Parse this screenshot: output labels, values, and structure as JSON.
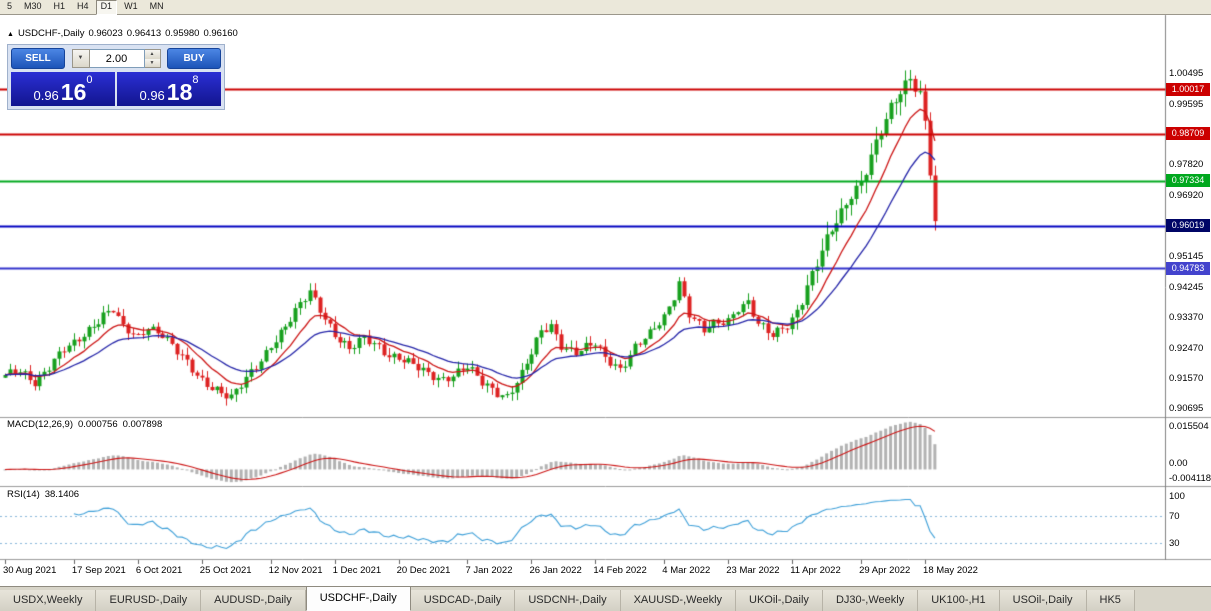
{
  "toolbar": {
    "timeframes": [
      "5",
      "M30",
      "H1",
      "H4",
      "D1",
      "W1",
      "MN"
    ],
    "active_timeframe": "D1"
  },
  "chart_header": {
    "title": "USDCHF-,Daily",
    "open": "0.96023",
    "high": "0.96413",
    "low": "0.95980",
    "close": "0.96160"
  },
  "one_click_panel": {
    "collapse_icon": "▲",
    "sell_label": "SELL",
    "buy_label": "BUY",
    "volume": "2.00",
    "bid": {
      "prefix": "0.96",
      "big": "16",
      "sup": "0"
    },
    "ask": {
      "prefix": "0.96",
      "big": "18",
      "sup": "8"
    }
  },
  "chart_data": {
    "type": "candlestick",
    "symbol": "USDCHF-",
    "timeframe": "Daily",
    "candle_count": 190,
    "price_range": [
      0.9047,
      1.0215
    ],
    "visible_ohlc": {
      "open": 0.96023,
      "high": 0.96413,
      "low": 0.9598,
      "close": 0.9616
    },
    "colors": {
      "up": "#17a01e",
      "down": "#dd2222",
      "ma_fast": "#cc1515",
      "ma_slow": "#2424a8"
    },
    "price_axis_labels": [
      "1.00495",
      "0.99595",
      "0.97820",
      "0.96920",
      "0.95145",
      "0.94245",
      "0.93370",
      "0.92470",
      "0.91570",
      "0.90695"
    ],
    "hlines": [
      {
        "price": 1.00017,
        "label": "1.00017",
        "line_color": "#cc0000",
        "badge_color": "#cc0000"
      },
      {
        "price": 0.98709,
        "label": "0.98709",
        "line_color": "#cc0000",
        "badge_color": "#cc0000"
      },
      {
        "price": 0.97334,
        "label": "0.97334",
        "line_color": "#00a81e",
        "badge_color": "#00a81e"
      },
      {
        "price": 0.96019,
        "label": "0.96019",
        "line_color": "#0000c0",
        "badge_color": "#000566"
      },
      {
        "price": 0.94783,
        "label": "0.94783",
        "line_color": "#3333cc",
        "badge_color": "#4343cd"
      }
    ],
    "date_ticks": [
      {
        "label": "30 Aug 2021",
        "index": 0
      },
      {
        "label": "17 Sep 2021",
        "index": 14
      },
      {
        "label": "6 Oct 2021",
        "index": 27
      },
      {
        "label": "25 Oct 2021",
        "index": 40
      },
      {
        "label": "12 Nov 2021",
        "index": 54
      },
      {
        "label": "1 Dec 2021",
        "index": 67
      },
      {
        "label": "20 Dec 2021",
        "index": 80
      },
      {
        "label": "7 Jan 2022",
        "index": 94
      },
      {
        "label": "26 Jan 2022",
        "index": 107
      },
      {
        "label": "14 Feb 2022",
        "index": 120
      },
      {
        "label": "4 Mar 2022",
        "index": 134
      },
      {
        "label": "23 Mar 2022",
        "index": 147
      },
      {
        "label": "11 Apr 2022",
        "index": 160
      },
      {
        "label": "29 Apr 2022",
        "index": 174
      },
      {
        "label": "18 May 2022",
        "index": 187
      }
    ],
    "close_anchors": [
      [
        0,
        0.916
      ],
      [
        3,
        0.9178
      ],
      [
        6,
        0.915
      ],
      [
        9,
        0.9192
      ],
      [
        12,
        0.9238
      ],
      [
        14,
        0.9255
      ],
      [
        17,
        0.9302
      ],
      [
        20,
        0.9345
      ],
      [
        22,
        0.9358
      ],
      [
        24,
        0.93
      ],
      [
        27,
        0.9275
      ],
      [
        29,
        0.9312
      ],
      [
        32,
        0.9288
      ],
      [
        35,
        0.9232
      ],
      [
        38,
        0.918
      ],
      [
        40,
        0.9152
      ],
      [
        43,
        0.9128
      ],
      [
        46,
        0.9098
      ],
      [
        49,
        0.9152
      ],
      [
        52,
        0.9212
      ],
      [
        54,
        0.9258
      ],
      [
        57,
        0.9308
      ],
      [
        60,
        0.9368
      ],
      [
        62,
        0.9408
      ],
      [
        64,
        0.9362
      ],
      [
        67,
        0.9288
      ],
      [
        70,
        0.9238
      ],
      [
        73,
        0.9272
      ],
      [
        76,
        0.9252
      ],
      [
        78,
        0.9228
      ],
      [
        80,
        0.9218
      ],
      [
        83,
        0.9192
      ],
      [
        86,
        0.9168
      ],
      [
        89,
        0.9158
      ],
      [
        94,
        0.9188
      ],
      [
        97,
        0.9142
      ],
      [
        100,
        0.9118
      ],
      [
        102,
        0.9108
      ],
      [
        105,
        0.9168
      ],
      [
        107,
        0.9228
      ],
      [
        109,
        0.9292
      ],
      [
        111,
        0.9312
      ],
      [
        113,
        0.9258
      ],
      [
        116,
        0.9232
      ],
      [
        120,
        0.9255
      ],
      [
        122,
        0.9218
      ],
      [
        125,
        0.9188
      ],
      [
        128,
        0.9248
      ],
      [
        131,
        0.9282
      ],
      [
        134,
        0.9335
      ],
      [
        136,
        0.9402
      ],
      [
        137,
        0.9442
      ],
      [
        139,
        0.9348
      ],
      [
        142,
        0.9292
      ],
      [
        144,
        0.9312
      ],
      [
        147,
        0.9328
      ],
      [
        149,
        0.9368
      ],
      [
        151,
        0.938
      ],
      [
        153,
        0.9312
      ],
      [
        156,
        0.9278
      ],
      [
        158,
        0.9306
      ],
      [
        160,
        0.9332
      ],
      [
        162,
        0.9392
      ],
      [
        164,
        0.9458
      ],
      [
        166,
        0.9522
      ],
      [
        168,
        0.9588
      ],
      [
        170,
        0.9642
      ],
      [
        172,
        0.9702
      ],
      [
        174,
        0.9732
      ],
      [
        176,
        0.9802
      ],
      [
        178,
        0.9872
      ],
      [
        180,
        0.9942
      ],
      [
        182,
        0.9998
      ],
      [
        184,
        1.0042
      ],
      [
        185,
        1.0015
      ],
      [
        186,
        0.999
      ],
      [
        187,
        0.9905
      ],
      [
        188,
        0.976
      ],
      [
        189,
        0.9616
      ]
    ],
    "indicators": {
      "macd": {
        "label": "MACD(12,26,9)",
        "value_main": "0.000756",
        "value_signal": "0.007898",
        "axis_labels": [
          "0.015504",
          "0.00",
          "-0.004118"
        ],
        "params": [
          12,
          26,
          9
        ]
      },
      "rsi": {
        "label": "RSI(14)",
        "value": "38.1406",
        "axis_labels": [
          "100",
          "70",
          "30"
        ],
        "levels": [
          70,
          30
        ],
        "params": [
          14
        ]
      }
    }
  },
  "tabs": {
    "items": [
      "USDX,Weekly",
      "EURUSD-,Daily",
      "AUDUSD-,Daily",
      "USDCHF-,Daily",
      "USDCAD-,Daily",
      "USDCNH-,Daily",
      "XAUUSD-,Weekly",
      "UKOil-,Daily",
      "DJ30-,Weekly",
      "UK100-,H1",
      "USOil-,Daily",
      "HK5"
    ],
    "active": "USDCHF-,Daily"
  }
}
